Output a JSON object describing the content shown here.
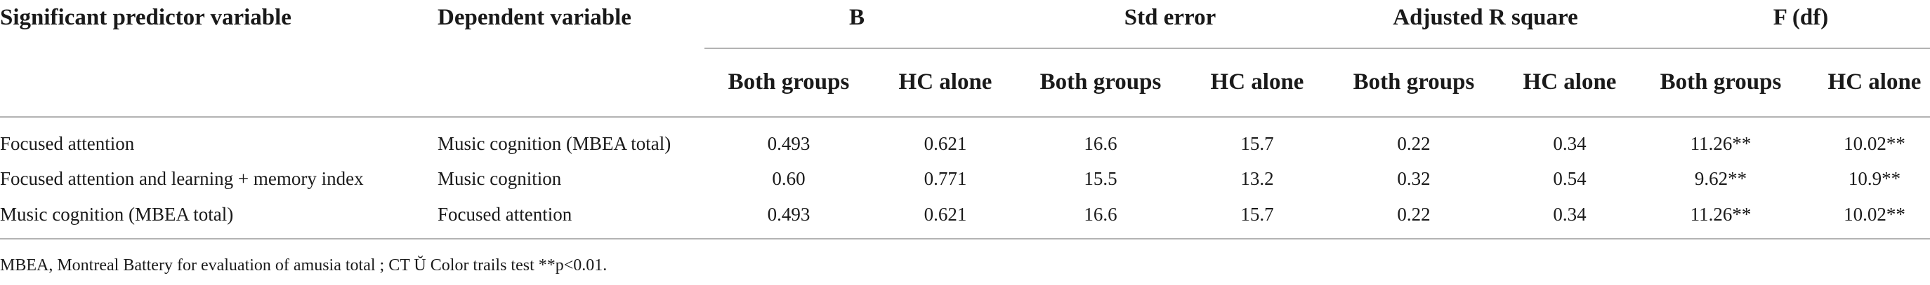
{
  "table": {
    "headers": {
      "predictor": "Significant predictor variable",
      "dependent": "Dependent variable",
      "b": "B",
      "std_error": "Std error",
      "adj_r_square": "Adjusted R square",
      "f_df": "F (df)"
    },
    "subheaders": [
      "Both groups",
      "HC alone",
      "Both groups",
      "HC alone",
      "Both groups",
      "HC alone",
      "Both groups",
      "HC alone"
    ],
    "rows": [
      {
        "predictor": "Focused attention",
        "dependent": "Music cognition (MBEA total)",
        "values": [
          "0.493",
          "0.621",
          "16.6",
          "15.7",
          "0.22",
          "0.34",
          "11.26**",
          "10.02**"
        ]
      },
      {
        "predictor": "Focused attention and learning + memory index",
        "dependent": "Music cognition",
        "values": [
          "0.60",
          "0.771",
          "15.5",
          "13.2",
          "0.32",
          "0.54",
          "9.62**",
          "10.9**"
        ]
      },
      {
        "predictor": "Music cognition (MBEA total)",
        "dependent": "Focused attention",
        "values": [
          "0.493",
          "0.621",
          "16.6",
          "15.7",
          "0.22",
          "0.34",
          "11.26**",
          "10.02**"
        ]
      }
    ],
    "footnote": "MBEA, Montreal Battery for evaluation of amusia total ; CT Ŭ Color trails test **p<0.01."
  }
}
